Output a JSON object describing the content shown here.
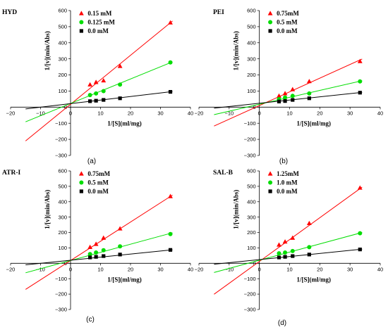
{
  "chart_data": [
    {
      "type": "line",
      "caption": "(a)",
      "title": "HYD",
      "xlabel": "1/[S](ml/mg)",
      "ylabel": "1/[v](min/Abs)",
      "xlim": [
        -20,
        40
      ],
      "ylim": [
        -300,
        600
      ],
      "xticks": [
        "−20",
        "−10",
        "0",
        "10",
        "20",
        "30",
        "40"
      ],
      "yticks": [
        "−300",
        "−200",
        "−100",
        "0",
        "100",
        "200",
        "300",
        "400",
        "500",
        "600"
      ],
      "legend_position": "top-left",
      "series": [
        {
          "name": "0.15 mM",
          "marker": "triangle",
          "color": "#ff0000",
          "x": [
            6.5,
            8.5,
            11,
            16.5,
            33.3
          ],
          "y": [
            140,
            155,
            165,
            255,
            525
          ],
          "fit_slope": 15.2,
          "fit_intercept": 18
        },
        {
          "name": "0.125 mM",
          "marker": "circle",
          "color": "#00dd00",
          "x": [
            6.5,
            8.5,
            11,
            16.5,
            33.3
          ],
          "y": [
            75,
            85,
            100,
            140,
            278
          ],
          "fit_slope": 7.6,
          "fit_intercept": 23
        },
        {
          "name": "0.0 mM",
          "marker": "square",
          "color": "#000000",
          "x": [
            6.5,
            8.5,
            11,
            16.5,
            33.3
          ],
          "y": [
            37,
            40,
            45,
            55,
            95
          ],
          "fit_slope": 2.2,
          "fit_intercept": 22
        }
      ]
    },
    {
      "type": "line",
      "caption": "(b)",
      "title": "PEI",
      "xlabel": "1/[S](ml/mg)",
      "ylabel": "1/[v](min/Abs)",
      "xlim": [
        -20,
        40
      ],
      "ylim": [
        -300,
        600
      ],
      "xticks": [
        "−20",
        "−10",
        "0",
        "10",
        "20",
        "30",
        "40"
      ],
      "yticks": [
        "−300",
        "−200",
        "−100",
        "0",
        "100",
        "200",
        "300",
        "400",
        "500",
        "600"
      ],
      "legend_position": "top-left",
      "series": [
        {
          "name": "0.75mM",
          "marker": "triangle",
          "color": "#ff0000",
          "x": [
            6.5,
            8.5,
            11,
            16.5,
            33.3
          ],
          "y": [
            70,
            85,
            110,
            160,
            285
          ],
          "fit_slope": 8.5,
          "fit_intercept": 10
        },
        {
          "name": "0.5 mM",
          "marker": "circle",
          "color": "#00dd00",
          "x": [
            6.5,
            8.5,
            11,
            16.5,
            33.3
          ],
          "y": [
            50,
            60,
            70,
            85,
            160
          ],
          "fit_slope": 4.3,
          "fit_intercept": 18
        },
        {
          "name": "0.0  mM",
          "marker": "square",
          "color": "#000000",
          "x": [
            6.5,
            8.5,
            11,
            16.5,
            33.3
          ],
          "y": [
            35,
            38,
            45,
            55,
            90
          ],
          "fit_slope": 2.0,
          "fit_intercept": 24
        }
      ]
    },
    {
      "type": "line",
      "caption": "(c)",
      "title": "ATR-I",
      "xlabel": "1/[S](ml/mg)",
      "ylabel": "1/[v](min/Abs)",
      "xlim": [
        -20,
        40
      ],
      "ylim": [
        -300,
        600
      ],
      "xticks": [
        "−20",
        "−10",
        "0",
        "10",
        "20",
        "30",
        "40"
      ],
      "yticks": [
        "−300",
        "−200",
        "−100",
        "0",
        "100",
        "200",
        "300",
        "400",
        "500",
        "600"
      ],
      "legend_position": "top-left",
      "series": [
        {
          "name": "0.75mM",
          "marker": "triangle",
          "color": "#ff0000",
          "x": [
            6.5,
            8.5,
            11,
            16.5,
            33.3
          ],
          "y": [
            105,
            125,
            165,
            225,
            435
          ],
          "fit_slope": 12.5,
          "fit_intercept": 18
        },
        {
          "name": "0.5 mM",
          "marker": "circle",
          "color": "#00dd00",
          "x": [
            6.5,
            8.5,
            11,
            16.5,
            33.3
          ],
          "y": [
            60,
            70,
            85,
            110,
            190
          ],
          "fit_slope": 5.3,
          "fit_intercept": 18
        },
        {
          "name": "0.0  mM",
          "marker": "square",
          "color": "#000000",
          "x": [
            6.5,
            8.5,
            11,
            16.5,
            33.3
          ],
          "y": [
            38,
            42,
            47,
            57,
            87
          ],
          "fit_slope": 2.0,
          "fit_intercept": 20
        }
      ]
    },
    {
      "type": "line",
      "caption": "(d)",
      "title": "SAL-B",
      "xlabel": "1/[S](ml/mg)",
      "ylabel": "1/[v](min/Abs)",
      "xlim": [
        -20,
        40
      ],
      "ylim": [
        -300,
        600
      ],
      "xticks": [
        "−20",
        "−10",
        "0",
        "10",
        "20",
        "30",
        "40"
      ],
      "yticks": [
        "−300",
        "−200",
        "−100",
        "0",
        "100",
        "200",
        "300",
        "400",
        "500",
        "600"
      ],
      "legend_position": "top-left",
      "series": [
        {
          "name": "1.25mM",
          "marker": "triangle",
          "color": "#ff0000",
          "x": [
            6.5,
            8.5,
            11,
            16.5,
            33.3
          ],
          "y": [
            120,
            140,
            165,
            260,
            490
          ],
          "fit_slope": 14.2,
          "fit_intercept": 12
        },
        {
          "name": "1.0  mM",
          "marker": "circle",
          "color": "#00dd00",
          "x": [
            6.5,
            8.5,
            11,
            16.5,
            33.3
          ],
          "y": [
            65,
            70,
            80,
            105,
            195
          ],
          "fit_slope": 5.3,
          "fit_intercept": 20
        },
        {
          "name": "0.0  mM",
          "marker": "square",
          "color": "#000000",
          "x": [
            6.5,
            8.5,
            11,
            16.5,
            33.3
          ],
          "y": [
            38,
            42,
            47,
            57,
            90
          ],
          "fit_slope": 2.0,
          "fit_intercept": 24
        }
      ]
    }
  ]
}
